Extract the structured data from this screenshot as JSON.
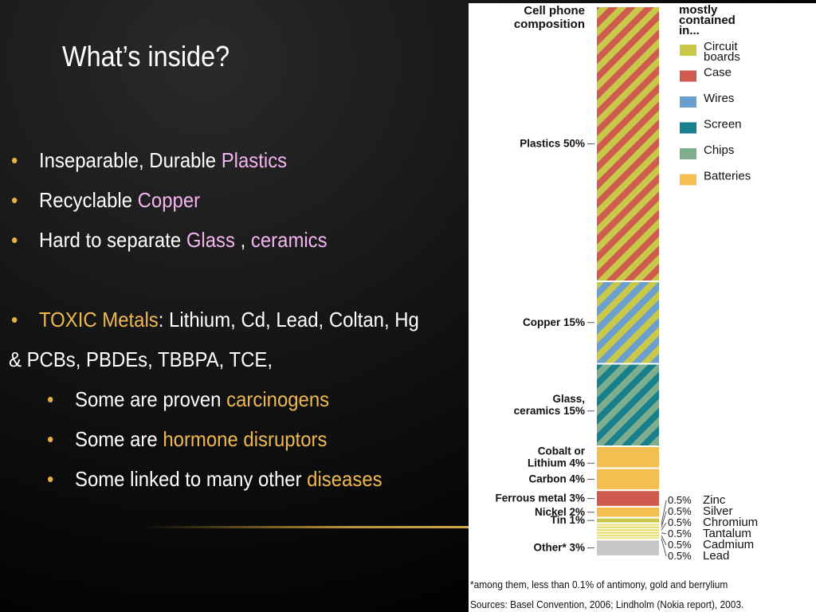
{
  "slide": {
    "title": "What’s inside?",
    "bullets": {
      "b1_text": "Inseparable, Durable ",
      "b1_hl": "Plastics",
      "b2_text": "Recyclable ",
      "b2_hl": "Copper",
      "b3_text": "Hard to separate ",
      "b3_hl1": "Glass",
      "b3_sep": " , ",
      "b3_hl2": "ceramics",
      "b4_hl": "TOXIC Metals",
      "b4_text": ": Lithium, Cd, Lead, Coltan, Hg",
      "cont": "& PCBs, PBDEs, TBBPA, TCE,",
      "s1_text": "Some are proven ",
      "s1_hl": "carcinogens",
      "s2_text": "Some are ",
      "s2_hl": "hormone disruptors",
      "s3_text": "Some linked to many other ",
      "s3_hl": "diseases"
    },
    "bullet_glyph": "•"
  },
  "chart_data": {
    "type": "bar",
    "title_line1": "Cell phone",
    "title_line2": "composition",
    "legend_title": [
      "mostly",
      "contained",
      "in..."
    ],
    "legend": [
      {
        "label": [
          "Circuit",
          "boards"
        ],
        "color": "#c8c84a"
      },
      {
        "label": [
          "Case"
        ],
        "color": "#cf5a4e"
      },
      {
        "label": [
          "Wires"
        ],
        "color": "#6a9fd0"
      },
      {
        "label": [
          "Screen"
        ],
        "color": "#17808c"
      },
      {
        "label": [
          "Chips"
        ],
        "color": "#7fae8f"
      },
      {
        "label": [
          "Batteries"
        ],
        "color": "#f2bf50"
      }
    ],
    "segments": [
      {
        "label": [
          "Plastics 50%"
        ],
        "value": 50,
        "pattern": [
          "#cf5a4e",
          "#c8c84a"
        ]
      },
      {
        "label": [
          "Copper 15%"
        ],
        "value": 15,
        "pattern": [
          "#6a9fd0",
          "#c8c84a"
        ]
      },
      {
        "label": [
          "Glass,",
          "ceramics 15%"
        ],
        "value": 15,
        "pattern": [
          "#17808c",
          "#7fae8f"
        ]
      },
      {
        "label": [
          "Cobalt or",
          "Lithium 4%"
        ],
        "value": 4,
        "color": "#f2bf50"
      },
      {
        "label": [
          "Carbon 4%"
        ],
        "value": 4,
        "color": "#f2bf50"
      },
      {
        "label": [
          "Ferrous metal 3%"
        ],
        "value": 3,
        "color": "#cf5a4e"
      },
      {
        "label": [
          "Nickel 2%"
        ],
        "value": 2,
        "color": "#f2bf50"
      },
      {
        "label": [
          "Tin 1%"
        ],
        "value": 1,
        "color": "#c8c84a"
      },
      {
        "label": [
          ""
        ],
        "value": 3,
        "color": "stripes-small"
      },
      {
        "label": [
          "Other* 3%"
        ],
        "value": 3,
        "color": "#c8c8c8"
      }
    ],
    "small_items": [
      {
        "pct": "0.5%",
        "name": "Zinc"
      },
      {
        "pct": "0.5%",
        "name": "Silver"
      },
      {
        "pct": "0.5%",
        "name": "Chromium"
      },
      {
        "pct": "0.5%",
        "name": "Tantalum"
      },
      {
        "pct": "0.5%",
        "name": "Cadmium"
      },
      {
        "pct": "0.5%",
        "name": "Lead"
      }
    ],
    "footnote": "*among them, less than 0.1% of antimony, gold and berrylium",
    "source": "Sources: Basel Convention, 2006; Lindholm (Nokia report), 2003."
  }
}
